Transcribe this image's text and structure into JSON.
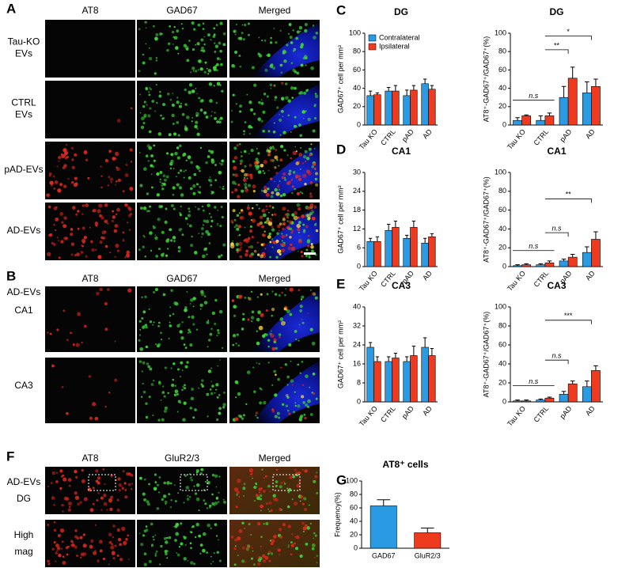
{
  "panel_labels": [
    "A",
    "B",
    "C",
    "D",
    "E",
    "F",
    "G"
  ],
  "panel_a": {
    "columns": [
      "AT8",
      "GAD67",
      "Merged"
    ],
    "rows": [
      [
        "Tau-KO",
        "EVs"
      ],
      [
        "CTRL",
        "EVs"
      ],
      [
        "pAD-EVs"
      ],
      [
        "AD-EVs"
      ]
    ]
  },
  "panel_b": {
    "columns": [
      "AT8",
      "GAD67",
      "Merged"
    ],
    "group": "AD-EVs",
    "rows": [
      "CA1",
      "CA3"
    ]
  },
  "panel_f": {
    "columns": [
      "AT8",
      "GluR2/3",
      "Merged"
    ],
    "rows": [
      [
        "AD-EVs",
        "DG"
      ],
      [
        "High",
        "mag"
      ]
    ]
  },
  "chart_data": [
    {
      "type": "bar",
      "title": "DG",
      "y_label": "GAD67⁺ cell per mm²",
      "categories": [
        "Tau KO",
        "CTRL",
        "pAD",
        "AD"
      ],
      "ylim": [
        0,
        100
      ],
      "yticks": [
        0,
        20,
        40,
        60,
        80,
        100
      ],
      "legend": "upper left",
      "series": [
        {
          "name": "Contralateral",
          "color": "#2a9be3",
          "values": [
            32,
            37,
            32,
            45
          ],
          "errors": [
            5,
            4,
            6,
            5
          ]
        },
        {
          "name": "Ipsilateral",
          "color": "#ee3a1f",
          "values": [
            33,
            37,
            38,
            39
          ],
          "errors": [
            2,
            6,
            5,
            4
          ]
        }
      ]
    },
    {
      "type": "bar",
      "title": "DG",
      "y_label": "AT8⁺-GAD67⁺/GAD67⁺(%)",
      "categories": [
        "Tau KO",
        "CTRL",
        "pAD",
        "AD"
      ],
      "ylim": [
        0,
        100
      ],
      "yticks": [
        0,
        20,
        40,
        60,
        80,
        100
      ],
      "annotations": [
        "n.s",
        "**",
        "*"
      ],
      "series": [
        {
          "color": "#2a9be3",
          "values": [
            5,
            5,
            30,
            35
          ],
          "errors": [
            3,
            5,
            12,
            12
          ]
        },
        {
          "color": "#ee3a1f",
          "values": [
            10,
            10,
            51,
            42
          ],
          "errors": [
            1,
            3,
            12,
            8
          ]
        }
      ]
    },
    {
      "type": "bar",
      "title": "CA1",
      "y_label": "GAD67⁺ cell per mm²",
      "categories": [
        "Tau KO",
        "CTRL",
        "pAD",
        "AD"
      ],
      "ylim": [
        0,
        30
      ],
      "yticks": [
        0,
        6,
        12,
        18,
        24,
        30
      ],
      "series": [
        {
          "color": "#2a9be3",
          "values": [
            8,
            11.5,
            9,
            7.5
          ],
          "errors": [
            1,
            2,
            1,
            1.5
          ]
        },
        {
          "color": "#ee3a1f",
          "values": [
            8,
            12.5,
            12.5,
            9.5
          ],
          "errors": [
            1.5,
            2,
            2,
            1
          ]
        }
      ]
    },
    {
      "type": "bar",
      "title": "CA1",
      "y_label": "AT8⁺-GAD67⁺/GAD67⁺(%)",
      "categories": [
        "Tau KO",
        "CTRL",
        "pAD",
        "AD"
      ],
      "ylim": [
        0,
        100
      ],
      "yticks": [
        0,
        20,
        40,
        60,
        80,
        100
      ],
      "annotations": [
        "n.s",
        "n.s",
        "**"
      ],
      "series": [
        {
          "color": "#2a9be3",
          "values": [
            1,
            2,
            6,
            15
          ],
          "errors": [
            1,
            1,
            2,
            6
          ]
        },
        {
          "color": "#ee3a1f",
          "values": [
            2,
            4,
            10,
            29
          ],
          "errors": [
            1,
            2,
            3,
            8
          ]
        }
      ]
    },
    {
      "type": "bar",
      "title": "CA3",
      "y_label": "GAD67⁺ cell per mm²",
      "categories": [
        "Tau KO",
        "CTRL",
        "pAD",
        "AD"
      ],
      "ylim": [
        0,
        40
      ],
      "yticks": [
        0,
        8,
        16,
        24,
        32,
        40
      ],
      "series": [
        {
          "color": "#2a9be3",
          "values": [
            23,
            17,
            17,
            23
          ],
          "errors": [
            2,
            2,
            2,
            4
          ]
        },
        {
          "color": "#ee3a1f",
          "values": [
            17,
            18.5,
            19.5,
            19.5
          ],
          "errors": [
            2,
            2,
            4,
            3
          ]
        }
      ]
    },
    {
      "type": "bar",
      "title": "CA3",
      "y_label": "AT8⁺-GAD67⁺/GAD67⁺(%)",
      "categories": [
        "Tau KO",
        "CTRL",
        "pAD",
        "AD"
      ],
      "ylim": [
        0,
        100
      ],
      "yticks": [
        0,
        20,
        40,
        60,
        80,
        100
      ],
      "annotations": [
        "n.s",
        "n.s",
        "***"
      ],
      "series": [
        {
          "color": "#2a9be3",
          "values": [
            1,
            2,
            8,
            16
          ],
          "errors": [
            1,
            1,
            3,
            6
          ]
        },
        {
          "color": "#ee3a1f",
          "values": [
            1,
            4,
            19,
            33
          ],
          "errors": [
            1,
            1,
            3,
            5
          ]
        }
      ]
    },
    {
      "type": "bar",
      "title": "AT8⁺ cells",
      "y_label": "Frequency(%)",
      "categories": [
        "GAD67",
        "GluR2/3"
      ],
      "ylim": [
        0,
        100
      ],
      "yticks": [
        0,
        20,
        40,
        60,
        80,
        100
      ],
      "values": [
        63,
        23
      ],
      "errors": [
        9,
        7
      ],
      "colors": [
        "#2a9be3",
        "#ee3a1f"
      ]
    }
  ]
}
